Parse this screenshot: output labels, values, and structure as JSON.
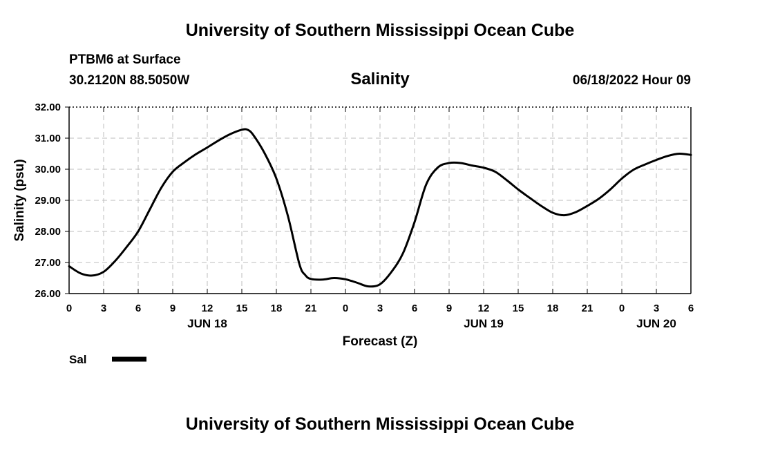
{
  "header": {
    "title": "University of Southern Mississippi Ocean Cube",
    "station": "PTBM6 at Surface",
    "coords": "30.2120N  88.5050W",
    "datetime": "06/18/2022 Hour 09"
  },
  "footer": {
    "title": "University of Southern Mississippi Ocean Cube"
  },
  "chart_data": {
    "type": "line",
    "title": "Salinity",
    "xlabel": "Forecast (Z)",
    "ylabel": "Salinity (psu)",
    "ylim": [
      26,
      32
    ],
    "yticks": [
      "32.00",
      "31.00",
      "30.00",
      "29.00",
      "28.00",
      "27.00",
      "26.00"
    ],
    "xlim": [
      0,
      54
    ],
    "xticks": [
      "0",
      "3",
      "6",
      "9",
      "12",
      "15",
      "18",
      "21",
      "0",
      "3",
      "6",
      "9",
      "12",
      "15",
      "18",
      "21",
      "0",
      "3",
      "6"
    ],
    "date_labels": [
      {
        "text": "JUN 18",
        "hour": 12
      },
      {
        "text": "JUN 19",
        "hour": 36
      },
      {
        "text": "JUN 20",
        "hour": 51
      }
    ],
    "grid": true,
    "legend": "bottom-left",
    "series": [
      {
        "name": "Sal",
        "color": "#000000",
        "x": [
          0,
          1,
          2,
          3,
          4,
          5,
          6,
          7,
          8,
          9,
          10,
          11,
          12,
          13,
          14,
          15,
          15.5,
          16,
          17,
          18,
          19,
          20,
          20.5,
          21,
          22,
          23,
          24,
          25,
          26,
          27,
          28,
          29,
          30,
          31,
          32,
          33,
          34,
          35,
          36,
          37,
          38,
          39,
          40,
          41,
          42,
          43,
          44,
          45,
          46,
          47,
          48,
          49,
          50,
          51,
          52,
          53,
          54
        ],
        "y": [
          26.88,
          26.65,
          26.58,
          26.7,
          27.05,
          27.5,
          28.0,
          28.7,
          29.4,
          29.92,
          30.22,
          30.48,
          30.7,
          30.93,
          31.13,
          31.27,
          31.27,
          31.1,
          30.5,
          29.7,
          28.5,
          26.95,
          26.6,
          26.47,
          26.45,
          26.5,
          26.46,
          26.35,
          26.23,
          26.3,
          26.7,
          27.3,
          28.3,
          29.5,
          30.05,
          30.2,
          30.2,
          30.12,
          30.05,
          29.92,
          29.65,
          29.35,
          29.08,
          28.82,
          28.6,
          28.52,
          28.62,
          28.82,
          29.05,
          29.35,
          29.7,
          29.98,
          30.15,
          30.3,
          30.43,
          30.5,
          30.46
        ]
      }
    ]
  }
}
